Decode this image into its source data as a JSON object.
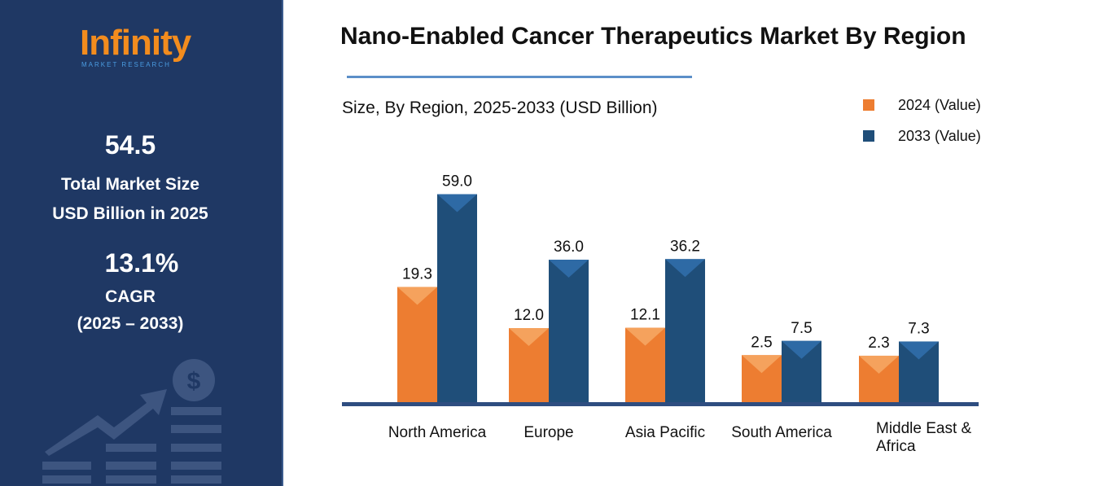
{
  "sidebar": {
    "logo_text": "Infinity",
    "logo_sub": "MARKET RESEARCH",
    "market_size": "54.5",
    "market_size_label_1": "Total Market Size",
    "market_size_label_2": "USD Billion in 2025",
    "cagr": "13.1%",
    "cagr_label": "CAGR",
    "cagr_period": "(2025 – 2033)"
  },
  "chart_data": {
    "type": "bar",
    "title": "Nano-Enabled Cancer Therapeutics Market By Region",
    "subtitle": "Size, By Region, 2025-2033 (USD Billion)",
    "categories": [
      "North America",
      "Europe",
      "Asia Pacific",
      "South America",
      "Middle East & Africa"
    ],
    "series": [
      {
        "name": "2024 (Value)",
        "color": "#ed7d31",
        "values": [
          19.3,
          12.0,
          12.1,
          2.5,
          2.3
        ],
        "labels": [
          "19.3",
          "12.0",
          "12.1",
          "2.5",
          "2.3"
        ]
      },
      {
        "name": "2033 (Value)",
        "color": "#1f4e79",
        "values": [
          59.0,
          36.0,
          36.2,
          7.5,
          7.3
        ],
        "labels": [
          "59.0",
          "36.0",
          "36.2",
          "7.5",
          "7.3"
        ]
      }
    ],
    "legend": "top-right",
    "grid": false
  }
}
